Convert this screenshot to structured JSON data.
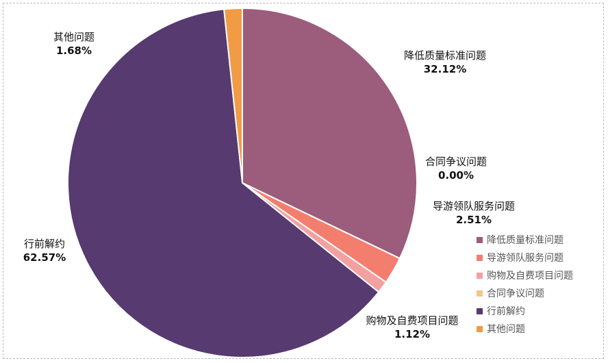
{
  "chart_data": {
    "type": "pie",
    "slices": [
      {
        "label": "降低质量标准问题",
        "value": 32.12,
        "value_label": "32.12%",
        "color": "#9c5c7c"
      },
      {
        "label": "合同争议问题",
        "value": 0.0,
        "value_label": "0.00%",
        "color": "#f5c488"
      },
      {
        "label": "导游领队服务问题",
        "value": 2.51,
        "value_label": "2.51%",
        "color": "#f47e6e"
      },
      {
        "label": "购物及自费项目问题",
        "value": 1.12,
        "value_label": "1.12%",
        "color": "#f3a0a0"
      },
      {
        "label": "行前解约",
        "value": 62.57,
        "value_label": "62.57%",
        "color": "#563a70"
      },
      {
        "label": "其他问题",
        "value": 1.68,
        "value_label": "1.68%",
        "color": "#f29b45"
      }
    ],
    "legend": {
      "position": "bottom-right",
      "items": [
        {
          "label": "降低质量标准问题",
          "color": "#9c5c7c"
        },
        {
          "label": "导游领队服务问题",
          "color": "#f47e6e"
        },
        {
          "label": "购物及自费项目问题",
          "color": "#f3a0a0"
        },
        {
          "label": "合同争议问题",
          "color": "#f5c488"
        },
        {
          "label": "行前解约",
          "color": "#563a70"
        },
        {
          "label": "其他问题",
          "color": "#f29b45"
        }
      ]
    }
  }
}
